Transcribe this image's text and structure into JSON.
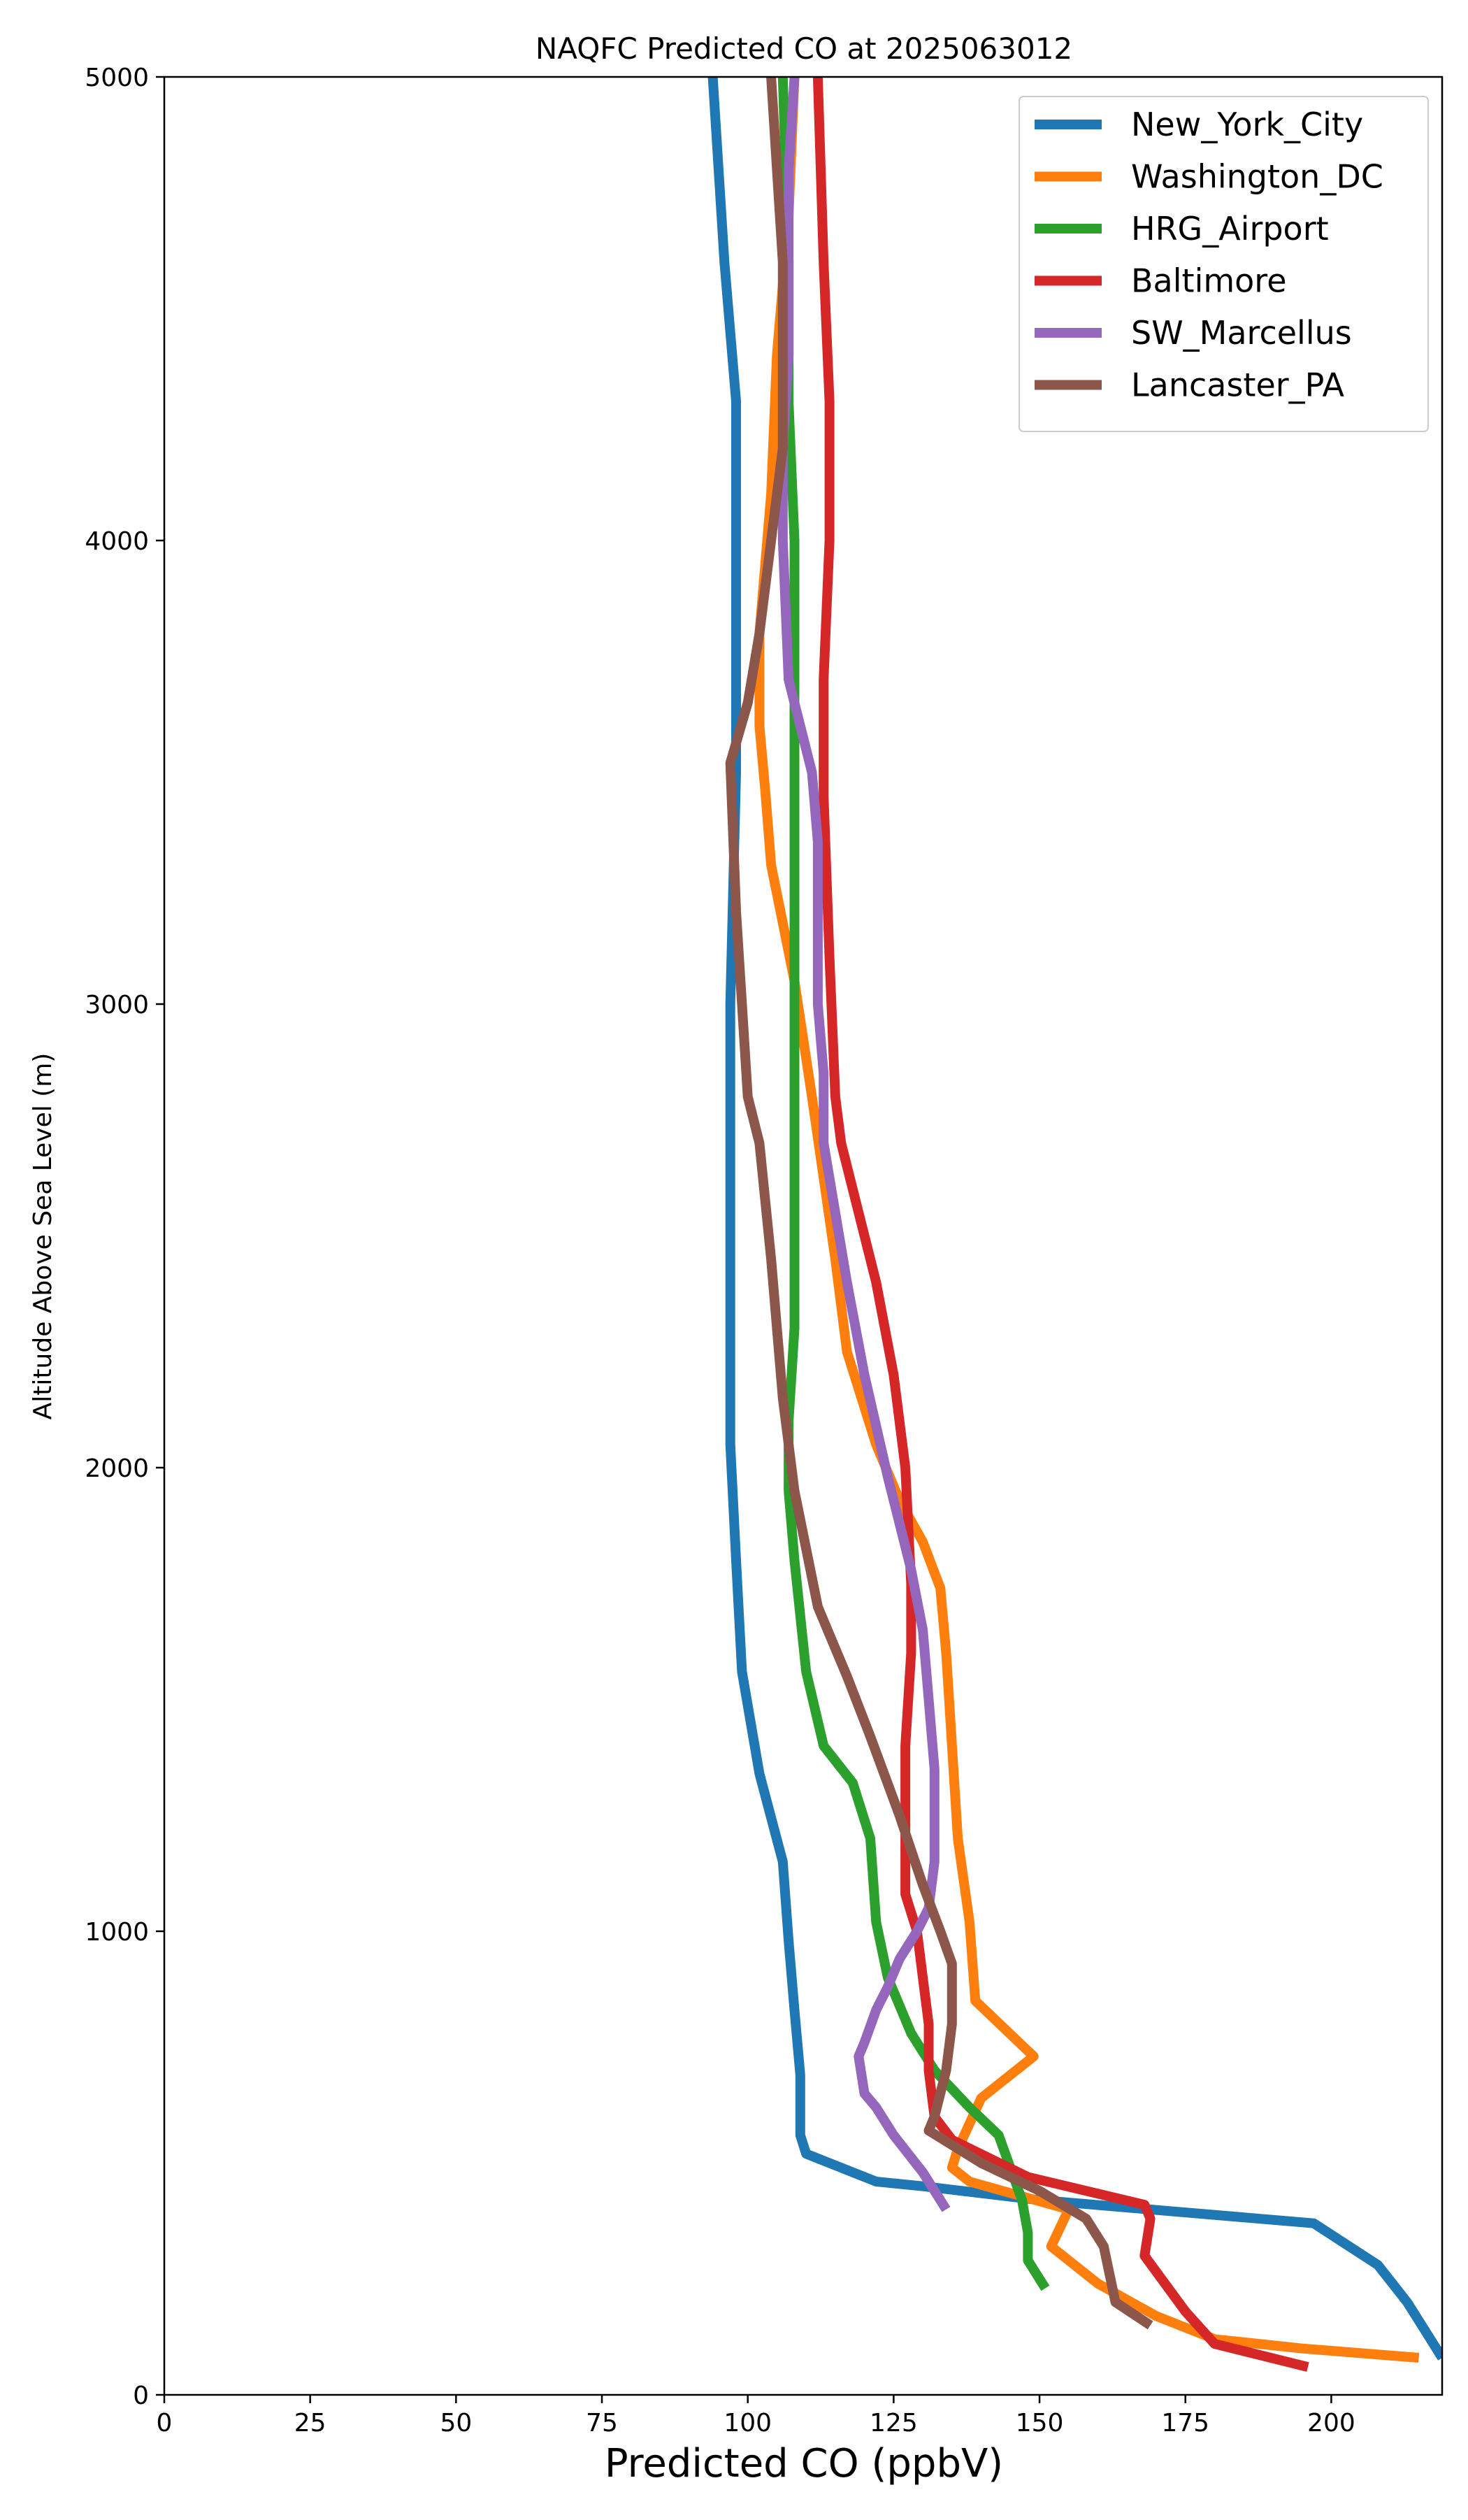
{
  "chart_data": {
    "type": "line",
    "title": "NAQFC Predicted CO at 2025063012",
    "xlabel": "Predicted CO (ppbV)",
    "ylabel": "Altitude Above Sea Level (m)",
    "xlim": [
      0,
      219
    ],
    "ylim": [
      0,
      5000
    ],
    "xticks": [
      "0",
      "25",
      "50",
      "75",
      "100",
      "125",
      "150",
      "175",
      "200"
    ],
    "yticks": [
      "0",
      "1000",
      "2000",
      "3000",
      "4000",
      "5000"
    ],
    "grid": false,
    "legend_position": "top-right",
    "series": [
      {
        "name": "New_York_City",
        "color": "#1f77b4",
        "x": [
          94,
          96,
          98,
          98,
          98,
          97,
          97,
          97,
          97,
          98,
          99,
          102,
          106,
          107,
          108,
          109,
          109,
          109,
          110,
          122,
          130,
          150,
          197,
          208,
          213,
          216,
          219
        ],
        "y": [
          5000,
          4600,
          4300,
          4000,
          3500,
          3000,
          2700,
          2350,
          2050,
          1800,
          1560,
          1340,
          1150,
          980,
          830,
          690,
          600,
          560,
          520,
          460,
          450,
          420,
          370,
          280,
          200,
          140,
          80
        ]
      },
      {
        "name": "Washington_DC",
        "color": "#ff7f0e",
        "x": [
          108,
          107,
          105,
          104,
          102,
          102,
          103,
          104,
          108,
          111,
          115,
          117,
          122,
          126,
          130,
          133,
          134,
          136,
          138,
          139,
          149,
          140,
          136,
          135,
          138,
          155,
          152,
          160,
          170,
          180,
          195,
          215
        ],
        "y": [
          5000,
          4700,
          4400,
          4100,
          3800,
          3600,
          3460,
          3300,
          3050,
          2800,
          2450,
          2250,
          2050,
          1930,
          1840,
          1740,
          1600,
          1200,
          1020,
          850,
          730,
          640,
          530,
          490,
          460,
          400,
          320,
          240,
          170,
          120,
          100,
          80
        ]
      },
      {
        "name": "HRG_Airport",
        "color": "#2ca02c",
        "x": [
          106,
          107,
          107,
          108,
          108,
          108,
          108,
          108,
          108,
          108,
          107,
          107,
          108,
          110,
          113,
          118,
          121,
          122,
          124,
          128,
          132,
          138,
          143,
          145,
          147,
          148,
          148,
          151
        ],
        "y": [
          5000,
          4600,
          4300,
          4000,
          3700,
          3400,
          3000,
          2700,
          2500,
          2300,
          2100,
          1950,
          1800,
          1560,
          1400,
          1320,
          1200,
          1020,
          900,
          780,
          700,
          620,
          560,
          490,
          420,
          350,
          290,
          230
        ]
      },
      {
        "name": "Baltimore",
        "color": "#d62728",
        "x": [
          112,
          113,
          114,
          114,
          113,
          113,
          114,
          115,
          116,
          119,
          122,
          125,
          127,
          128,
          128,
          127,
          127,
          127,
          129,
          130,
          131,
          131,
          132,
          135,
          148,
          168,
          169,
          168,
          175,
          180,
          196
        ],
        "y": [
          5000,
          4600,
          4300,
          4000,
          3700,
          3450,
          3100,
          2800,
          2700,
          2550,
          2400,
          2200,
          2000,
          1750,
          1600,
          1400,
          1180,
          1080,
          1000,
          900,
          800,
          700,
          600,
          550,
          470,
          410,
          380,
          300,
          180,
          110,
          60
        ]
      },
      {
        "name": "SW_Marcellus",
        "color": "#9467bd",
        "x": [
          108,
          107,
          107,
          107,
          106,
          106,
          107,
          109,
          111,
          112,
          112,
          113,
          113,
          115,
          117,
          120,
          124,
          128,
          130,
          131,
          132,
          132,
          131,
          129,
          126,
          124,
          122,
          120,
          119,
          120,
          122,
          125,
          130,
          133,
          134
        ],
        "y": [
          5000,
          4800,
          4600,
          4400,
          4200,
          4000,
          3700,
          3600,
          3500,
          3350,
          3000,
          2850,
          2700,
          2550,
          2400,
          2200,
          1980,
          1780,
          1650,
          1500,
          1350,
          1150,
          1050,
          1000,
          940,
          880,
          830,
          760,
          730,
          650,
          620,
          560,
          480,
          420,
          400
        ]
      },
      {
        "name": "Lancaster_PA",
        "color": "#8c564b",
        "x": [
          104,
          105,
          106,
          106,
          106,
          104,
          102,
          100,
          97,
          98,
          99,
          100,
          102,
          104,
          106,
          108,
          112,
          117,
          121,
          126,
          130,
          133,
          135,
          135,
          134,
          132,
          131,
          140,
          150,
          158,
          161,
          163,
          169
        ],
        "y": [
          5000,
          4800,
          4600,
          4400,
          4200,
          4000,
          3800,
          3650,
          3520,
          3200,
          3000,
          2800,
          2700,
          2450,
          2150,
          1950,
          1700,
          1550,
          1420,
          1250,
          1100,
          1000,
          930,
          800,
          700,
          600,
          570,
          500,
          440,
          380,
          320,
          200,
          150
        ]
      }
    ]
  }
}
